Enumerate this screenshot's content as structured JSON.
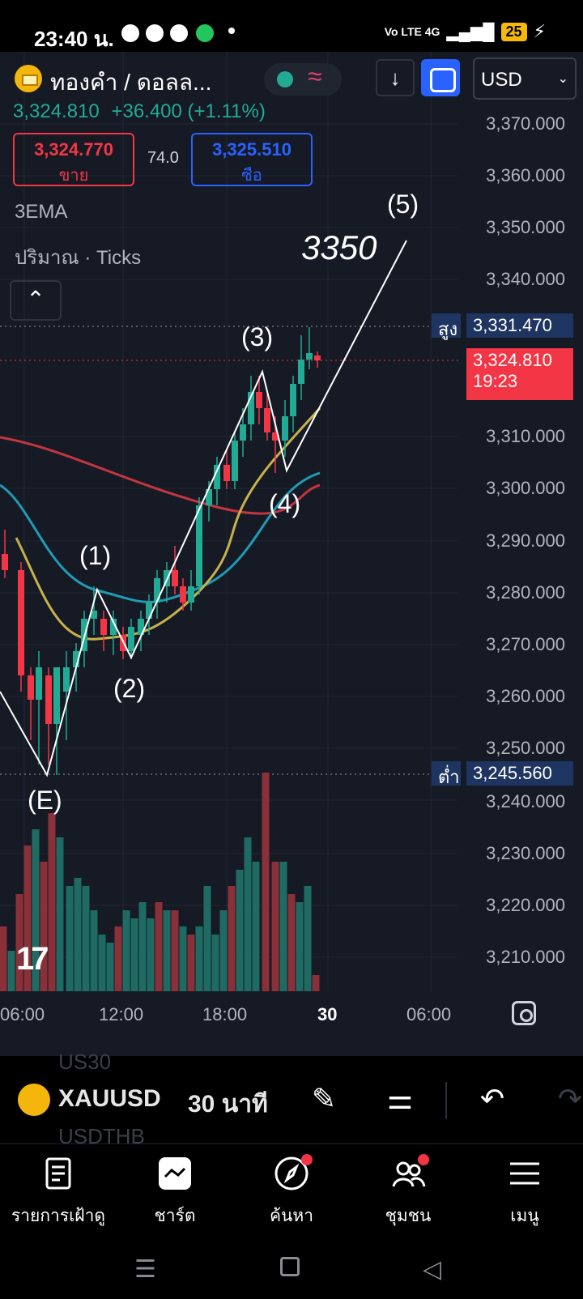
{
  "status_bar": {
    "time": "23:40 น.",
    "network": "Vo LTE  4G",
    "battery": "25"
  },
  "header": {
    "symbol_title": "ทองคำ / ดอลล...",
    "currency": "USD",
    "last_price": "3,324.810",
    "change": "+36.400",
    "change_pct": "(+1.11%)",
    "sell_price": "3,324.770",
    "sell_label": "ขาย",
    "spread": "74.0",
    "buy_price": "3,325.510",
    "buy_label": "ซือ",
    "indicator_1": "3EMA",
    "indicator_2": "ปริมาณ · Ticks"
  },
  "price_axis": {
    "labels": [
      "3,370.000",
      "3,360.000",
      "3,350.000",
      "3,340.000",
      "3,310.000",
      "3,300.000",
      "3,290.000",
      "3,280.000",
      "3,270.000",
      "3,260.000",
      "3,250.000",
      "3,240.000",
      "3,230.000",
      "3,220.000",
      "3,210.000"
    ],
    "high_label": "สูง",
    "high_value": "3,331.470",
    "current_value": "3,324.810",
    "countdown": "19:23",
    "low_label": "ต่ำ",
    "low_value": "3,245.560"
  },
  "time_axis": {
    "labels": [
      "06:00",
      "12:00",
      "18:00",
      "30",
      "06:00"
    ]
  },
  "annotations": {
    "target": "3350",
    "waves": [
      "(E)",
      "(1)",
      "(2)",
      "(3)",
      "(4)",
      "(5)"
    ]
  },
  "colors": {
    "background": "#161a25",
    "up": "#22ab94",
    "down": "#f23645",
    "ema_fast": "#c7b24a",
    "ema_mid": "#1f9bb5",
    "ema_slow": "#c2363f",
    "accent": "#2962ff"
  },
  "toolbar": {
    "ghost_top": "US30",
    "symbol": "XAUUSD",
    "interval": "30 นาที",
    "ghost_bottom": "USDTHB",
    "icons": [
      "pencil-icon",
      "sliders-icon",
      "undo-icon",
      "redo-icon"
    ]
  },
  "bottom_nav": {
    "items": [
      {
        "label": "รายการเฝ้าดู",
        "icon": "watchlist-icon"
      },
      {
        "label": "ชาร์ต",
        "icon": "chart-icon"
      },
      {
        "label": "ค้นหา",
        "icon": "compass-icon"
      },
      {
        "label": "ชุมชน",
        "icon": "community-icon"
      },
      {
        "label": "เมนู",
        "icon": "menu-icon"
      }
    ]
  },
  "system_nav": [
    "recent-apps-icon",
    "home-icon",
    "back-icon"
  ]
}
